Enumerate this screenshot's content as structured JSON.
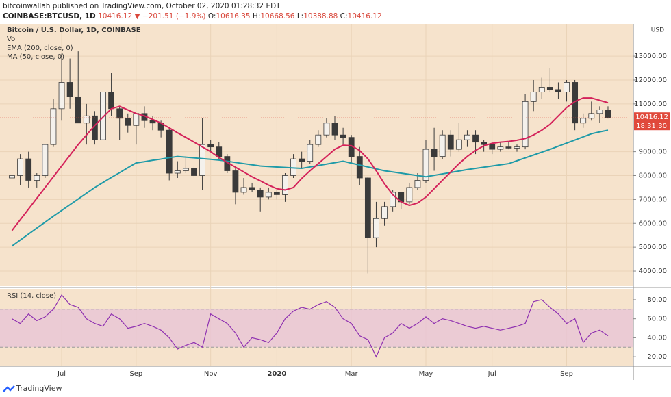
{
  "header": {
    "author_line": "bitcoinwallah published on TradingView.com, October 02, 2020 01:28:32 EDT",
    "symbol": "COINBASE:BTCUSD, 1D",
    "last": "10416.12",
    "change": "▼ −201.51 (−1.9%)",
    "open_label": "O:",
    "open": "10616.35",
    "high_label": "H:",
    "high": "10668.56",
    "low_label": "L:",
    "low": "10388.88",
    "close_label": "C:",
    "close": "10416.12"
  },
  "footer": {
    "brand": "TradingView"
  },
  "chart_data": [
    {
      "type": "candlestick",
      "title": "Bitcoin / U.S. Dollar, 1D, COINBASE",
      "volume_label": "Vol",
      "axis_unit": "USD",
      "categories": [
        null,
        null,
        null,
        null,
        null,
        null,
        "Jul",
        null,
        null,
        null,
        null,
        null,
        null,
        null,
        null,
        "Sep",
        null,
        null,
        null,
        null,
        null,
        null,
        null,
        null,
        "Nov",
        null,
        null,
        null,
        null,
        null,
        null,
        null,
        "2020",
        null,
        null,
        null,
        null,
        null,
        null,
        null,
        null,
        "Mar",
        null,
        null,
        null,
        null,
        null,
        null,
        null,
        null,
        "May",
        null,
        null,
        null,
        null,
        null,
        null,
        null,
        "Jul",
        null,
        null,
        null,
        null,
        null,
        null,
        null,
        null,
        "Sep",
        null,
        null,
        null,
        null,
        null
      ],
      "open": [
        7900,
        8000,
        8700,
        7800,
        8000,
        9300,
        10800,
        11900,
        11300,
        10200,
        10500,
        9500,
        11500,
        10800,
        10400,
        10100,
        10600,
        10300,
        10200,
        9900,
        8100,
        8200,
        8300,
        8000,
        9300,
        9200,
        8800,
        8200,
        7300,
        7500,
        7400,
        7100,
        7300,
        7200,
        8000,
        8700,
        8600,
        9300,
        9700,
        10200,
        9700,
        9600,
        8800,
        7900,
        5400,
        6200,
        6700,
        7300,
        6900,
        7500,
        7800,
        9100,
        8800,
        9700,
        9100,
        9500,
        9700,
        9400,
        9300,
        9100,
        9200,
        9150,
        9200,
        11100,
        11500,
        11700,
        11600,
        11500,
        11900,
        10200,
        10400,
        10600,
        10750
      ],
      "high": [
        8300,
        8900,
        9000,
        8100,
        9300,
        11200,
        13100,
        12900,
        13200,
        11000,
        10700,
        11900,
        12300,
        10900,
        10600,
        10600,
        10900,
        10500,
        10300,
        10000,
        8600,
        8800,
        8400,
        10400,
        9500,
        9400,
        8900,
        8300,
        7900,
        7700,
        7500,
        7500,
        7400,
        8100,
        8900,
        9000,
        9500,
        9900,
        10400,
        10500,
        10000,
        9700,
        9200,
        7950,
        6900,
        6900,
        7400,
        7300,
        7700,
        8100,
        9500,
        10000,
        9900,
        9900,
        10200,
        9900,
        9900,
        9500,
        9400,
        9400,
        9400,
        9300,
        11400,
        12000,
        12100,
        12500,
        11900,
        12000,
        12000,
        10600,
        11100,
        10900,
        10900
      ],
      "low": [
        7200,
        7600,
        7500,
        7500,
        7900,
        9200,
        10300,
        10800,
        10200,
        9300,
        9300,
        9500,
        10500,
        9500,
        9800,
        9300,
        10000,
        9900,
        9600,
        7800,
        7900,
        8100,
        7900,
        7400,
        9000,
        8700,
        8100,
        6800,
        7200,
        7300,
        6500,
        7000,
        7000,
        6900,
        7900,
        8300,
        8500,
        9200,
        9600,
        9500,
        9300,
        8500,
        7600,
        3900,
        5000,
        5900,
        6500,
        6600,
        6800,
        7400,
        7700,
        8200,
        8700,
        8800,
        9000,
        9200,
        8900,
        9000,
        8900,
        9000,
        9100,
        9000,
        9100,
        10700,
        11200,
        11500,
        11200,
        11100,
        9900,
        10000,
        10300,
        10200,
        10390
      ],
      "close": [
        8000,
        8700,
        7800,
        8000,
        9300,
        10800,
        11900,
        11300,
        10200,
        10500,
        9500,
        11500,
        10800,
        10400,
        10100,
        10600,
        10300,
        10200,
        9900,
        8100,
        8200,
        8300,
        8000,
        9300,
        9200,
        8800,
        8200,
        7300,
        7500,
        7400,
        7100,
        7300,
        7200,
        8000,
        8700,
        8600,
        9300,
        9700,
        10200,
        9700,
        9600,
        8800,
        7900,
        5400,
        6200,
        6700,
        7300,
        6900,
        7500,
        7800,
        9100,
        8800,
        9700,
        9100,
        9500,
        9700,
        9400,
        9300,
        9100,
        9200,
        9150,
        9200,
        11100,
        11500,
        11700,
        11600,
        11500,
        11900,
        10200,
        10400,
        10600,
        10750,
        10416
      ],
      "up_color": "#f4f1ec",
      "down_color": "#3a3a3a",
      "wick_color": "#3a3a3a",
      "background": "#f6e3cc",
      "series": [
        {
          "name": "EMA (200, close, 0)",
          "color": "#1e9aa8",
          "values": [
            5050,
            5300,
            5550,
            5800,
            6050,
            6300,
            6540,
            6780,
            7020,
            7260,
            7500,
            7710,
            7920,
            8120,
            8330,
            8530,
            8580,
            8640,
            8690,
            8750,
            8800,
            8770,
            8740,
            8710,
            8680,
            8650,
            8600,
            8550,
            8500,
            8450,
            8400,
            8380,
            8360,
            8340,
            8320,
            8300,
            8360,
            8420,
            8480,
            8540,
            8600,
            8520,
            8440,
            8360,
            8280,
            8200,
            8150,
            8100,
            8050,
            8000,
            7950,
            8010,
            8070,
            8130,
            8190,
            8250,
            8300,
            8350,
            8400,
            8450,
            8500,
            8620,
            8740,
            8860,
            8980,
            9100,
            9230,
            9360,
            9490,
            9620,
            9750,
            9830,
            9900
          ]
        },
        {
          "name": "MA (50, close, 0)",
          "color": "#d4225a",
          "values": [
            5700,
            6150,
            6600,
            7050,
            7500,
            7950,
            8400,
            8850,
            9300,
            9700,
            10100,
            10450,
            10800,
            10900,
            10750,
            10600,
            10500,
            10350,
            10200,
            10000,
            9790,
            9600,
            9400,
            9200,
            9000,
            8760,
            8550,
            8350,
            8150,
            7950,
            7780,
            7600,
            7450,
            7400,
            7500,
            7880,
            8200,
            8500,
            8800,
            9100,
            9270,
            9250,
            9050,
            8700,
            8200,
            7650,
            7200,
            6900,
            6750,
            6850,
            7100,
            7450,
            7800,
            8150,
            8500,
            8800,
            9050,
            9250,
            9350,
            9400,
            9430,
            9480,
            9550,
            9700,
            9900,
            10150,
            10500,
            10850,
            11100,
            11250,
            11250,
            11150,
            11050
          ]
        }
      ],
      "ylim": [
        3370,
        14350
      ],
      "yticks": [
        {
          "value": 4000,
          "label": "4000.00"
        },
        {
          "value": 5000,
          "label": "5000.00"
        },
        {
          "value": 6000,
          "label": "6000.00"
        },
        {
          "value": 7000,
          "label": "7000.00"
        },
        {
          "value": 8000,
          "label": "8000.00"
        },
        {
          "value": 9000,
          "label": "9000.00"
        },
        {
          "value": 11000,
          "label": "11000.00"
        },
        {
          "value": 12000,
          "label": "12000.00"
        },
        {
          "value": 13000,
          "label": "13000.00"
        }
      ],
      "last_price": 10416.12,
      "last_price_color": "#e0493b",
      "countdown": "18:31:30",
      "grid": true
    },
    {
      "type": "line",
      "title": "RSI (14, close)",
      "color": "#8e2fb0",
      "band": [
        30,
        70
      ],
      "band_color": "#e8c4d6",
      "values": [
        60,
        55,
        65,
        58,
        62,
        70,
        85,
        75,
        72,
        60,
        55,
        52,
        65,
        60,
        50,
        52,
        55,
        52,
        48,
        40,
        28,
        32,
        35,
        30,
        65,
        60,
        55,
        45,
        30,
        40,
        38,
        35,
        45,
        60,
        68,
        72,
        70,
        75,
        78,
        72,
        60,
        55,
        42,
        38,
        20,
        40,
        45,
        55,
        50,
        55,
        62,
        55,
        60,
        58,
        55,
        52,
        50,
        52,
        50,
        48,
        50,
        52,
        55,
        78,
        80,
        72,
        65,
        55,
        60,
        35,
        45,
        48,
        42
      ],
      "ylim": [
        10,
        91.5
      ],
      "yticks": [
        {
          "value": 20,
          "label": "20.00"
        },
        {
          "value": 40,
          "label": "40.00"
        },
        {
          "value": 60,
          "label": "60.00"
        },
        {
          "value": 80,
          "label": "80.00"
        }
      ]
    }
  ]
}
